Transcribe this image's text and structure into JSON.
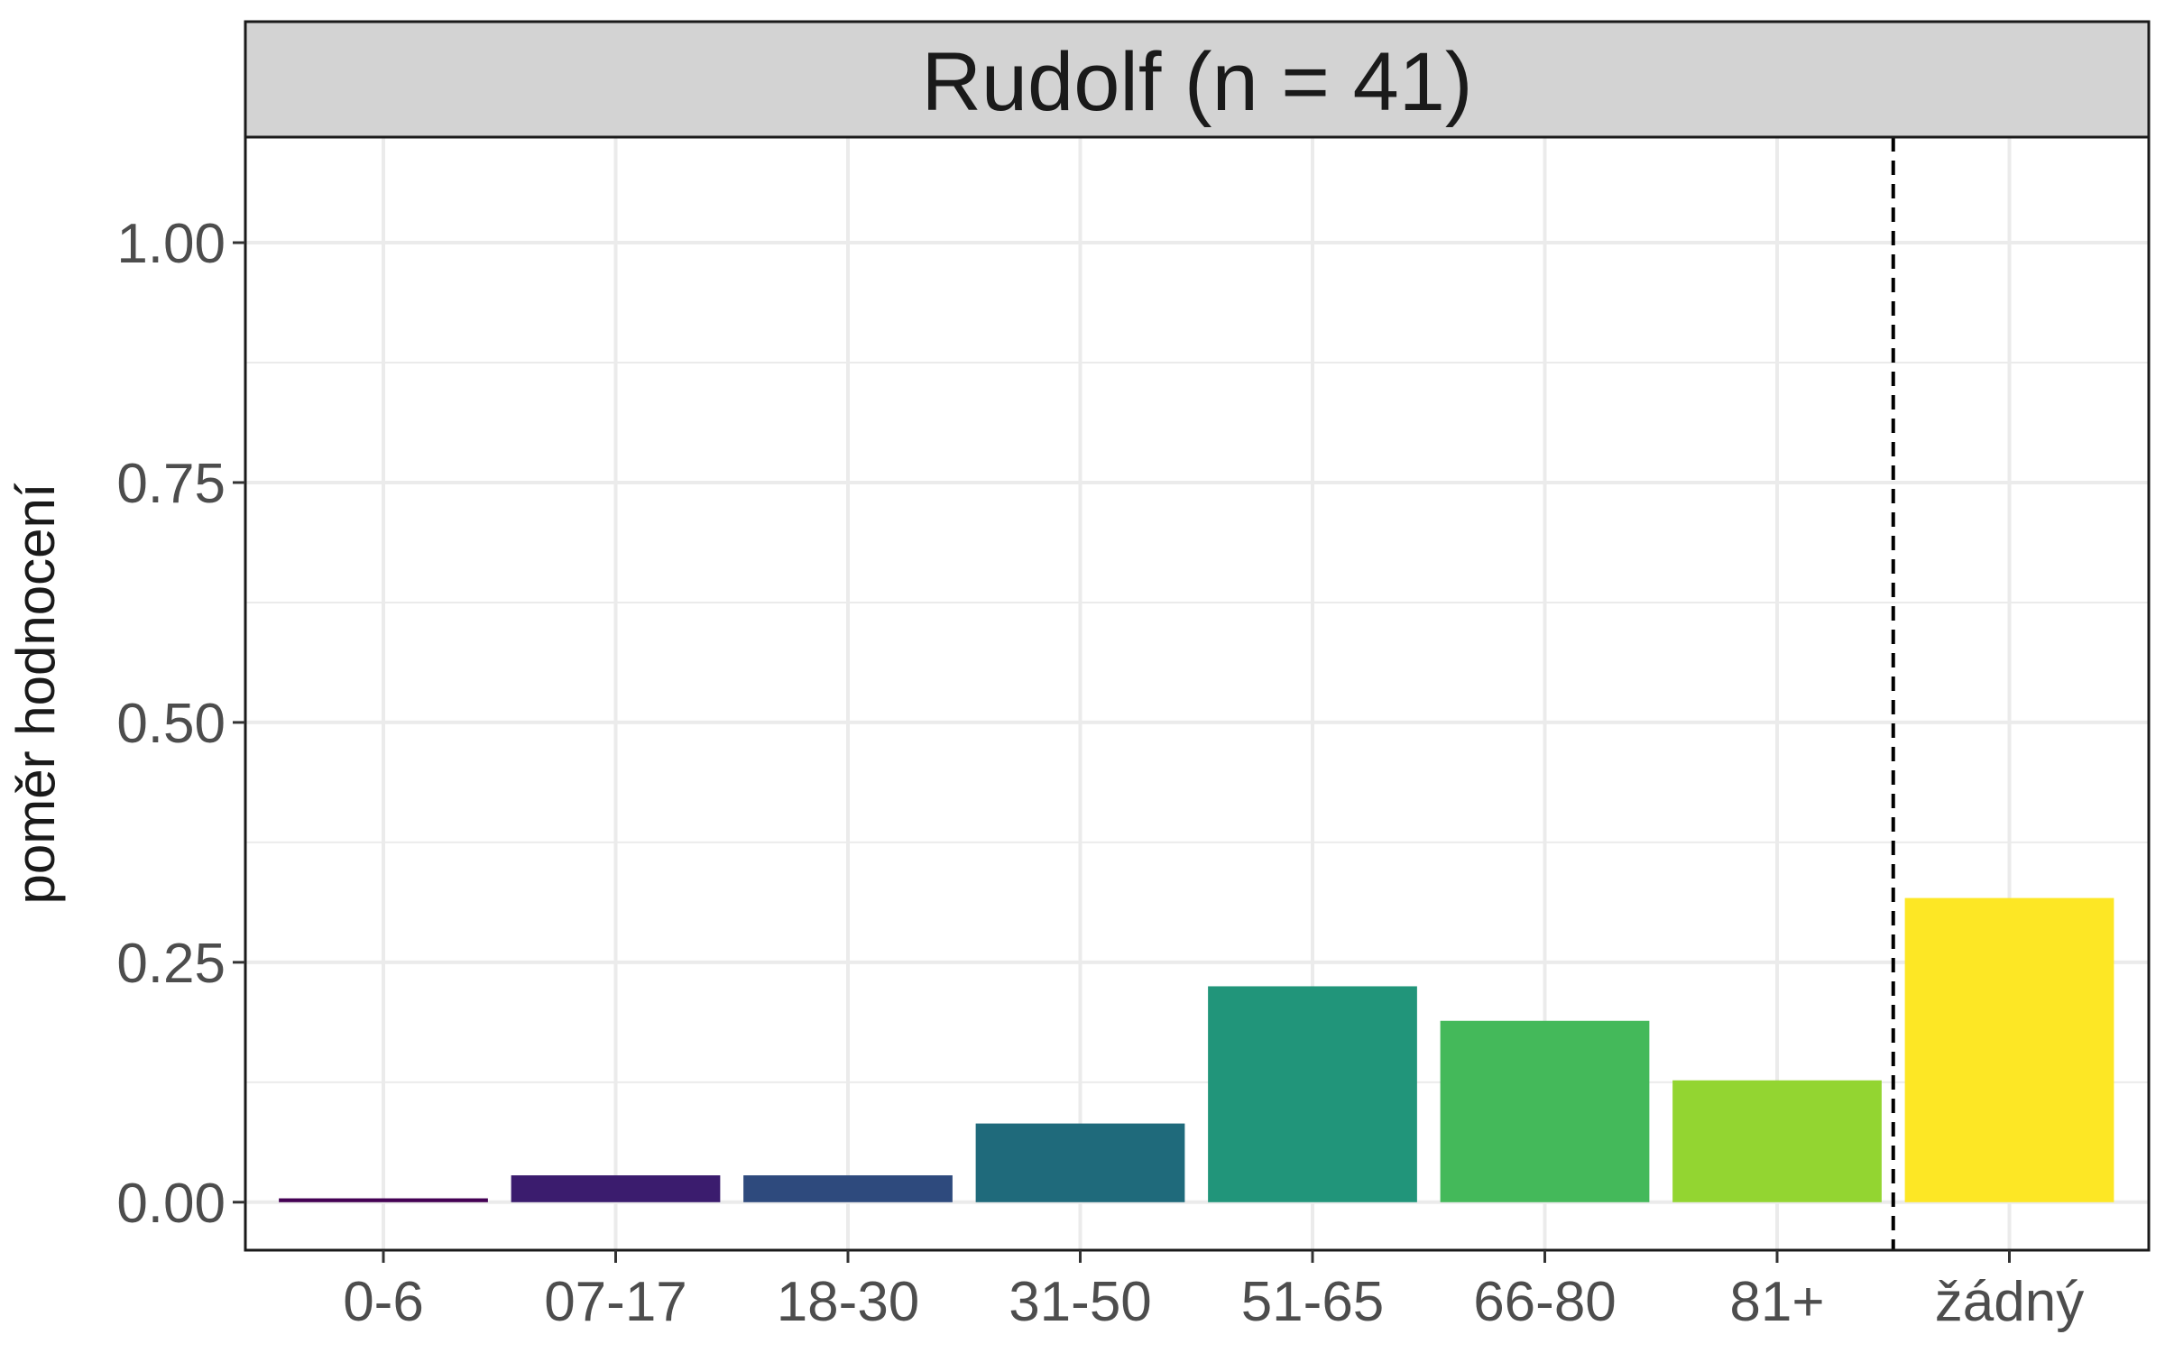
{
  "chart_data": {
    "type": "bar",
    "title": "Rudolf (n = 41)",
    "xlabel": "",
    "ylabel": "poměr hodnocení",
    "ylim": [
      -0.05,
      1.11
    ],
    "yticks": [
      "0.00",
      "0.25",
      "0.50",
      "0.75",
      "1.00"
    ],
    "ytick_values": [
      0,
      0.25,
      0.5,
      0.75,
      1.0
    ],
    "grid": true,
    "legend": "none",
    "categories": [
      "0-6",
      "07-17",
      "18-30",
      "31-50",
      "51-65",
      "66-80",
      "81+",
      "žádný"
    ],
    "values": [
      0.004,
      0.028,
      0.028,
      0.082,
      0.225,
      0.189,
      0.127,
      0.317
    ],
    "colors": [
      "#440154",
      "#3B1C6E",
      "#2E4A7D",
      "#1F6A7B",
      "#21957A",
      "#44B95A",
      "#93D531",
      "#FDE725"
    ],
    "reference_line": {
      "between": [
        "81+",
        "žádný"
      ],
      "style": "dashed",
      "color": "#000000"
    },
    "strip_color": "#d3d3d3",
    "grid_color": "#ebebeb",
    "text_color": "#1a1a1a",
    "tick_color": "#4d4d4d"
  }
}
